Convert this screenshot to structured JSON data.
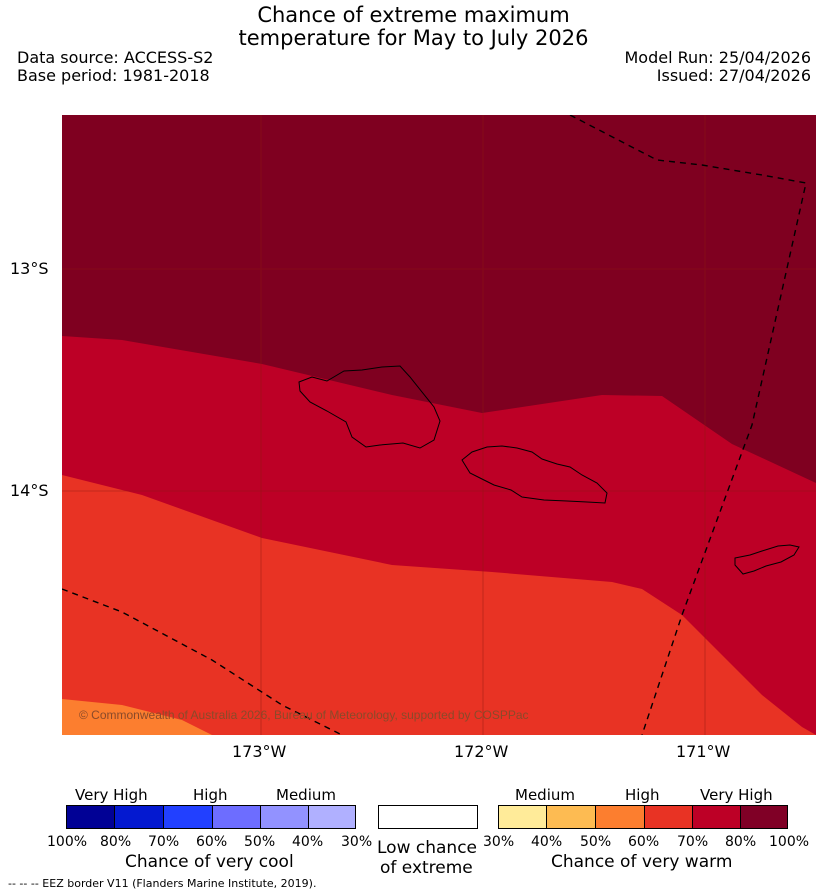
{
  "title_line1": "Chance of extreme maximum",
  "title_line2": "temperature for May to July 2026",
  "data_source": "Data source: ACCESS-S2",
  "base_period": "Base period: 1981-2018",
  "model_run": "Model Run: 25/04/2026",
  "issued": "Issued: 27/04/2026",
  "lat_labels": [
    "13°S",
    "14°S"
  ],
  "lon_labels": [
    "173°W",
    "172°W",
    "171°W"
  ],
  "copyright": "© Commonwealth of Australia 2026, Bureau of Meteorology, supported by COSPPac",
  "colors": {
    "very_warm_90": "#7f0020",
    "very_warm_75": "#bd0026",
    "very_warm_65": "#e83324",
    "very_warm_55": "#fc7e2f",
    "cool": [
      "#010195",
      "#0419d0",
      "#2240ff",
      "#6d6dff",
      "#9292ff",
      "#b0b0ff"
    ],
    "warm": [
      "#ffeb99",
      "#fdbb52",
      "#fc7e2f",
      "#e83324",
      "#bd0026",
      "#800026"
    ]
  },
  "legend": {
    "cool_groups": [
      "Very High",
      "High",
      "Medium"
    ],
    "cool_ticks": [
      "100%",
      "80%",
      "70%",
      "60%",
      "50%",
      "40%",
      "30%"
    ],
    "cool_title": "Chance of very cool",
    "low_title_line1": "Low chance",
    "low_title_line2": "of extreme",
    "warm_groups": [
      "Medium",
      "High",
      "Very High"
    ],
    "warm_ticks": [
      "30%",
      "40%",
      "50%",
      "60%",
      "70%",
      "80%",
      "100%"
    ],
    "warm_title": "Chance of very warm"
  },
  "footer": "--  --  -- EEZ border V11 (Flanders Marine Institute, 2019)."
}
